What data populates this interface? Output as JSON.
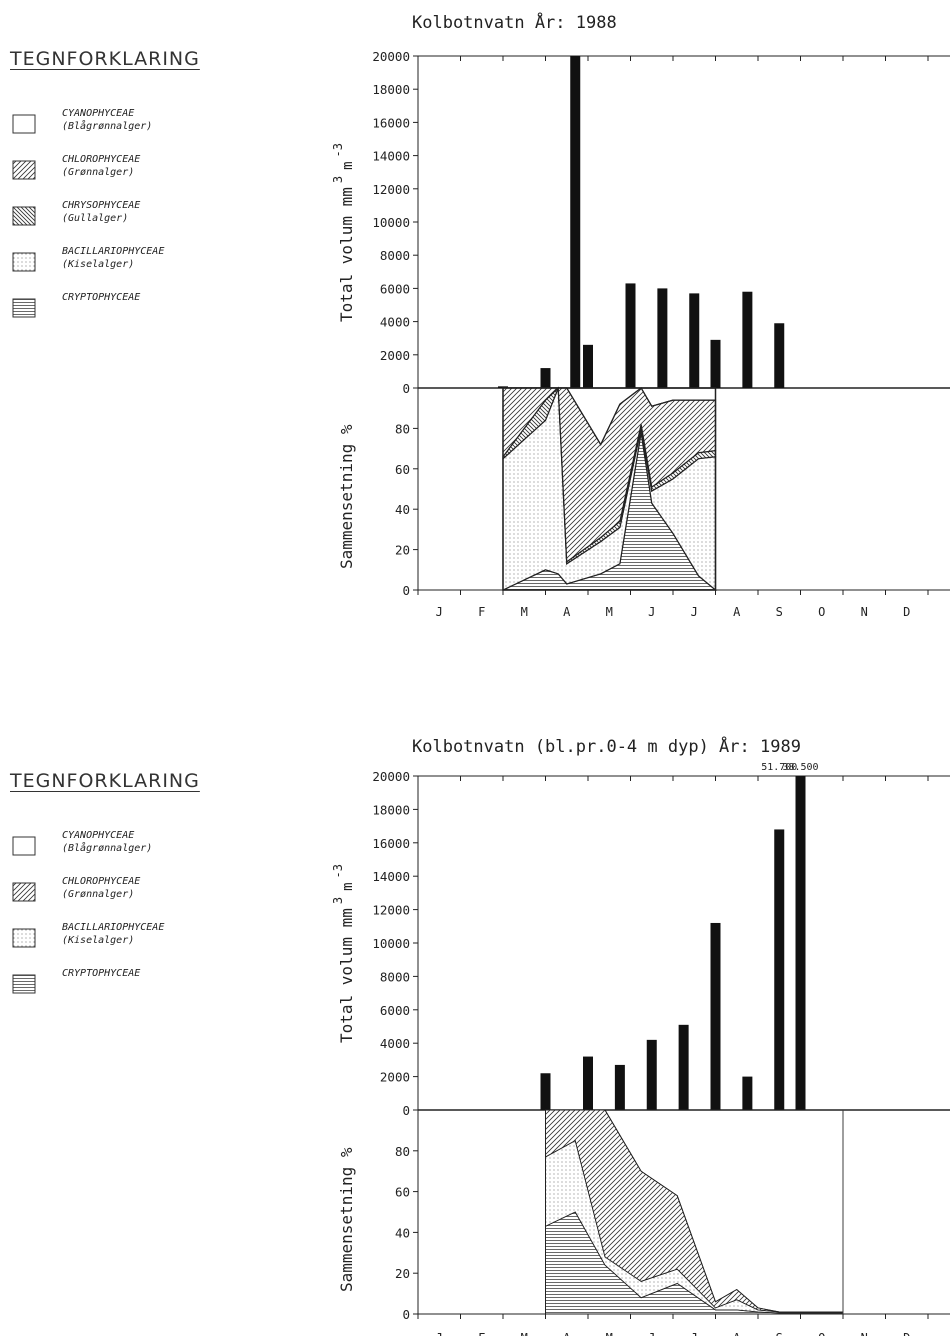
{
  "legend_title": "TEGNFORKLARING",
  "legends": [
    {
      "items": [
        {
          "name": "CYANOPHYCEAE",
          "sub": "(Blågrønnalger)",
          "pattern": "none"
        },
        {
          "name": "CHLOROPHYCEAE",
          "sub": "(Grønnalger)",
          "pattern": "diag-right"
        },
        {
          "name": "CHRYSOPHYCEAE",
          "sub": "(Gullalger)",
          "pattern": "diag-left"
        },
        {
          "name": "BACILLARIOPHYCEAE",
          "sub": "(Kiselalger)",
          "pattern": "dots"
        },
        {
          "name": "CRYPTOPHYCEAE",
          "sub": "",
          "pattern": "horizontal"
        }
      ]
    },
    {
      "items": [
        {
          "name": "CYANOPHYCEAE",
          "sub": "(Blågrønnalger)",
          "pattern": "none"
        },
        {
          "name": "CHLOROPHYCEAE",
          "sub": "(Grønnalger)",
          "pattern": "diag-right"
        },
        {
          "name": "BACILLARIOPHYCEAE",
          "sub": "(Kiselalger)",
          "pattern": "dots"
        },
        {
          "name": "CRYPTOPHYCEAE",
          "sub": "",
          "pattern": "horizontal"
        }
      ]
    }
  ],
  "chart_data": [
    {
      "type": "bar",
      "title": "Kolbotnvatn  År: 1988",
      "ylabel": "Total volum mm 3 m -3",
      "ylabel_main": "Total volum mm",
      "ylabel_sup1": "3",
      "ylabel_m": "m",
      "ylabel_sup2": "-3",
      "ylim": [
        0,
        20000
      ],
      "yticks": [
        "20000",
        "18000",
        "16000",
        "14000",
        "12000",
        "10000",
        "8000",
        "6000",
        "4000",
        "2000",
        "0"
      ],
      "months": [
        "J",
        "F",
        "M",
        "A",
        "M",
        "J",
        "J",
        "A",
        "S",
        "O",
        "N",
        "D"
      ],
      "x": [
        2.0,
        3.0,
        3.7,
        4.0,
        5.0,
        5.75,
        6.5,
        7.0,
        7.75,
        8.5,
        9.0
      ],
      "values": [
        100,
        1200,
        20000,
        2600,
        6300,
        6000,
        5700,
        2900,
        5800,
        3900,
        0
      ],
      "bar_labels": [
        "",
        "",
        "",
        "",
        "",
        "",
        "",
        "",
        "",
        "",
        ""
      ],
      "composition": {
        "type": "area",
        "ylabel": "Sammensetning %",
        "ylim": [
          0,
          100
        ],
        "yticks": [
          "80",
          "60",
          "40",
          "20",
          "0"
        ],
        "x": [
          0,
          1,
          1.3,
          1.5,
          2.3,
          2.75,
          3.25,
          3.5,
          4.0,
          4.6,
          5.0
        ],
        "series": [
          {
            "name": "CRYPTOPHYCEAE",
            "pattern": "horizontal",
            "values": [
              0,
              10,
              8,
              3,
              8,
              13,
              78,
              43,
              28,
              7,
              0
            ]
          },
          {
            "name": "BACILLARIOPHYCEAE",
            "pattern": "dots",
            "values": [
              65,
              74,
              97,
              10,
              16,
              18,
              2,
              6,
              27,
              58,
              66
            ]
          },
          {
            "name": "CHRYSOPHYCEAE",
            "pattern": "diag-left",
            "values": [
              1,
              10,
              0,
              1,
              2,
              3,
              2,
              2,
              3,
              3,
              3
            ]
          },
          {
            "name": "CHLOROPHYCEAE",
            "pattern": "diag-right",
            "values": [
              34,
              6,
              0,
              86,
              46,
              58,
              18,
              40,
              36,
              26,
              25
            ]
          },
          {
            "name": "CYANOPHYCEAE",
            "pattern": "none",
            "values": [
              0,
              0,
              0,
              0,
              0,
              0,
              0,
              0,
              0,
              0,
              0
            ]
          }
        ]
      }
    },
    {
      "type": "bar",
      "title": "Kolbotnvatn (bl.pr.0-4 m dyp)  År: 1989",
      "ylabel": "Total volum mm 3 m -3",
      "ylabel_main": "Total volum mm",
      "ylabel_sup1": "3",
      "ylabel_m": "m",
      "ylabel_sup2": "-3",
      "ylim": [
        0,
        20000
      ],
      "yticks": [
        "20000",
        "18000",
        "16000",
        "14000",
        "12000",
        "10000",
        "8000",
        "6000",
        "4000",
        "2000",
        "0"
      ],
      "months": [
        "J",
        "F",
        "M",
        "A",
        "M",
        "J",
        "J",
        "A",
        "S",
        "O",
        "N",
        "D"
      ],
      "x": [
        3.0,
        4.0,
        4.75,
        5.5,
        6.25,
        7.0,
        7.75,
        8.5,
        9.0
      ],
      "values": [
        2200,
        3200,
        2700,
        4200,
        5100,
        11200,
        2000,
        16800,
        20000
      ],
      "bar_labels": [
        "",
        "",
        "",
        "",
        "",
        "",
        "",
        "51.700",
        "38.500"
      ],
      "composition": {
        "type": "area",
        "ylabel": "Sammensetning %",
        "ylim": [
          0,
          100
        ],
        "yticks": [
          "80",
          "60",
          "40",
          "20",
          "0"
        ],
        "x": [
          0,
          0.7,
          1.4,
          2.25,
          3.1,
          4.0,
          4.5,
          5.0,
          5.5,
          6.0,
          6.5,
          7.0
        ],
        "series": [
          {
            "name": "CRYPTOPHYCEAE",
            "pattern": "horizontal",
            "values": [
              43,
              50,
              24,
              8,
              15,
              2,
              2,
              1,
              0.5,
              0.5,
              0.5,
              0.5
            ]
          },
          {
            "name": "BACILLARIOPHYCEAE",
            "pattern": "dots",
            "values": [
              34,
              35,
              4,
              8,
              7,
              1,
              5,
              1,
              0.5,
              0.5,
              0.5,
              0.5
            ]
          },
          {
            "name": "CHLOROPHYCEAE",
            "pattern": "diag-right",
            "values": [
              23,
              15,
              72,
              54,
              36,
              3,
              5,
              1,
              0,
              0,
              0,
              0
            ]
          },
          {
            "name": "CYANOPHYCEAE",
            "pattern": "none",
            "values": [
              0,
              0,
              0,
              0,
              0,
              0,
              0,
              0,
              0,
              0,
              0,
              0
            ]
          }
        ]
      }
    }
  ]
}
